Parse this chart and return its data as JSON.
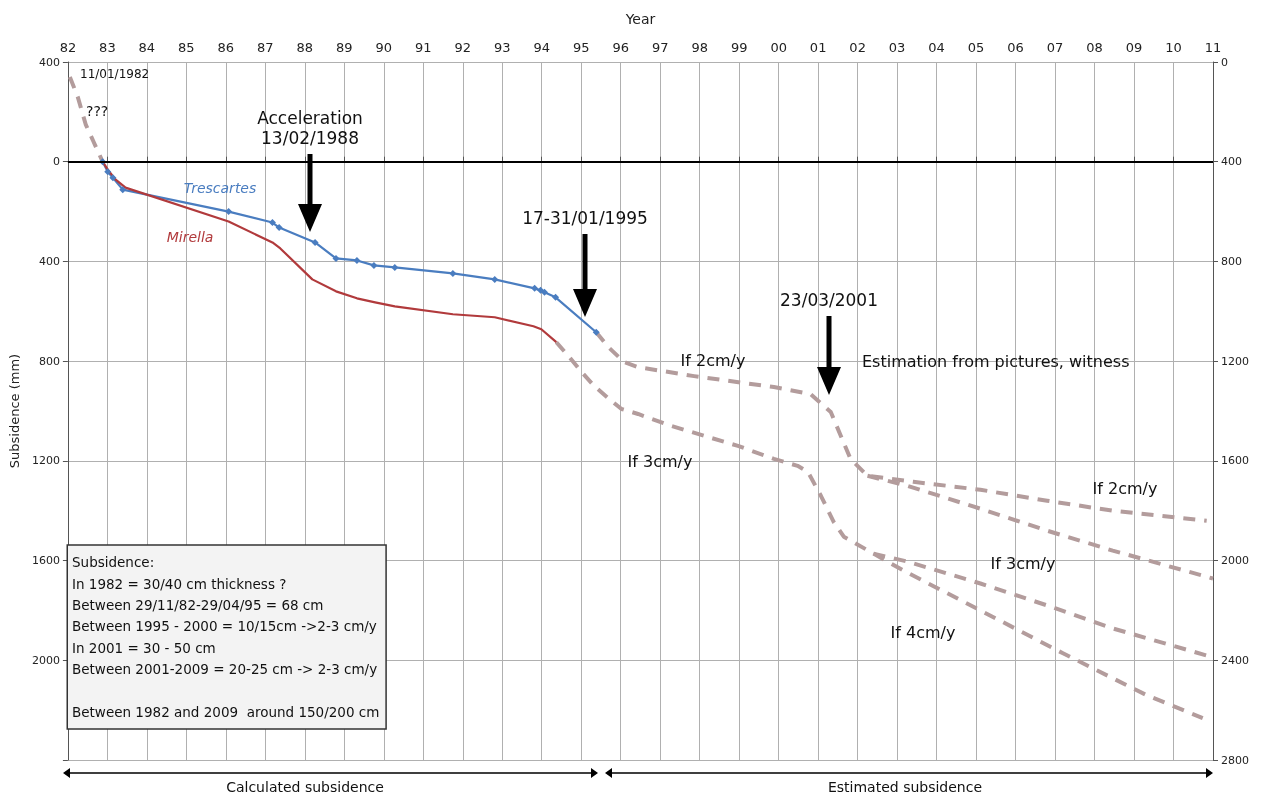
{
  "chart_data": {
    "type": "line",
    "xlabel": "Year",
    "ylabel": "Subsidence (mm)",
    "xlim": [
      1982,
      2011
    ],
    "xticks": [
      {
        "value": 1982,
        "label": "82"
      },
      {
        "value": 1983,
        "label": "83"
      },
      {
        "value": 1984,
        "label": "84"
      },
      {
        "value": 1985,
        "label": "85"
      },
      {
        "value": 1986,
        "label": "86"
      },
      {
        "value": 1987,
        "label": "87"
      },
      {
        "value": 1988,
        "label": "88"
      },
      {
        "value": 1989,
        "label": "89"
      },
      {
        "value": 1990,
        "label": "90"
      },
      {
        "value": 1991,
        "label": "91"
      },
      {
        "value": 1992,
        "label": "92"
      },
      {
        "value": 1993,
        "label": "93"
      },
      {
        "value": 1994,
        "label": "94"
      },
      {
        "value": 1995,
        "label": "95"
      },
      {
        "value": 1996,
        "label": "96"
      },
      {
        "value": 1997,
        "label": "97"
      },
      {
        "value": 1998,
        "label": "98"
      },
      {
        "value": 1999,
        "label": "99"
      },
      {
        "value": 2000,
        "label": "00"
      },
      {
        "value": 2001,
        "label": "01"
      },
      {
        "value": 2002,
        "label": "02"
      },
      {
        "value": 2003,
        "label": "03"
      },
      {
        "value": 2004,
        "label": "04"
      },
      {
        "value": 2005,
        "label": "05"
      },
      {
        "value": 2006,
        "label": "06"
      },
      {
        "value": 2007,
        "label": "07"
      },
      {
        "value": 2008,
        "label": "08"
      },
      {
        "value": 2009,
        "label": "09"
      },
      {
        "value": 2010,
        "label": "10"
      },
      {
        "value": 2011,
        "label": "11"
      }
    ],
    "ylim": [
      2400,
      -400
    ],
    "yticks": [
      {
        "value": -400,
        "label": "400"
      },
      0,
      400,
      800,
      1200,
      1600,
      2000,
      {
        "value": 2400,
        "label": null
      }
    ],
    "y2lim": [
      2800,
      0
    ],
    "y2ticks": [
      0,
      400,
      800,
      1200,
      1600,
      2000,
      2400,
      2800
    ],
    "grid": true,
    "series": [
      {
        "name": "Trescartes",
        "color": "#4a7dc0",
        "marker": "diamond",
        "line_style": "solid",
        "x": [
          1982.88,
          1983.01,
          1983.14,
          1983.39,
          1986.07,
          1987.18,
          1987.35,
          1988.26,
          1988.79,
          1989.32,
          1989.75,
          1990.28,
          1991.75,
          1992.81,
          1993.82,
          1993.97,
          1994.07,
          1994.35,
          1995.38
        ],
        "values": [
          0,
          40,
          64,
          112,
          200,
          244,
          264,
          324,
          388,
          396,
          416,
          424,
          448,
          472,
          508,
          516,
          524,
          544,
          684
        ]
      },
      {
        "name": "Mirella",
        "color": "#b13a3c",
        "marker": "none",
        "line_style": "solid",
        "x": [
          1982.88,
          1983.01,
          1983.21,
          1983.46,
          1986.07,
          1987.18,
          1987.38,
          1988.19,
          1988.79,
          1989.32,
          1989.78,
          1990.28,
          1991.75,
          1992.81,
          1993.79,
          1993.99,
          1994.37
        ],
        "values": [
          0,
          32,
          72,
          104,
          240,
          324,
          348,
          472,
          520,
          548,
          564,
          580,
          612,
          624,
          660,
          672,
          724
        ]
      },
      {
        "color": "#b39c9c",
        "marker": "none",
        "line_style": "dashed",
        "x": [
          1982.05,
          1982.25,
          1982.45,
          1982.65,
          1982.88
        ],
        "values": [
          -340,
          -260,
          -150,
          -80,
          0
        ]
      },
      {
        "color": "#b39c9c",
        "marker": "none",
        "line_style": "dashed",
        "x": [
          1995.38,
          1995.69,
          1996.09,
          1996.44,
          1997.86,
          1999.88,
          2000.81,
          2001.32,
          2001.82,
          2002.25,
          2003.41,
          2005.11,
          2006.8,
          2008.46,
          2010.84
        ],
        "values": [
          684,
          744,
          804,
          824,
          860,
          904,
          932,
          1004,
          1192,
          1260,
          1284,
          1316,
          1360,
          1400,
          1440
        ]
      },
      {
        "color": "#b39c9c",
        "marker": "none",
        "line_style": "dashed",
        "x": [
          2002.25,
          2003.26,
          2005.11,
          2006.8,
          2008.46,
          2011.0
        ],
        "values": [
          1260,
          1300,
          1392,
          1480,
          1560,
          1672
        ]
      },
      {
        "color": "#b39c9c",
        "marker": "none",
        "line_style": "dashed",
        "x": [
          1994.37,
          1994.7,
          1995.01,
          1995.33,
          1995.71,
          1996.02,
          1996.44,
          1997.28,
          1998.97,
          1999.88,
          2000.48,
          2000.74,
          2001.07,
          2001.39,
          2001.65,
          2002.4,
          2003.26,
          2005.11,
          2006.8,
          2008.46,
          2010.91
        ],
        "values": [
          724,
          784,
          844,
          900,
          952,
          992,
          1012,
          1060,
          1140,
          1192,
          1220,
          1244,
          1340,
          1444,
          1504,
          1572,
          1604,
          1692,
          1780,
          1872,
          1984
        ]
      },
      {
        "color": "#b39c9c",
        "marker": "none",
        "line_style": "dashed",
        "x": [
          2002.4,
          2003.16,
          2005.11,
          2007.2,
          2009.32,
          2010.74
        ],
        "values": [
          1572,
          1640,
          1800,
          1972,
          2140,
          2232
        ]
      }
    ],
    "ref_lines": [
      {
        "axis": "y",
        "value": 0,
        "color": "#000000"
      }
    ],
    "annotations": [
      "Acceleration\n13/02/1988",
      "17-31/01/1995",
      "23/03/2001",
      "11/01/1982",
      "???",
      "Estimation from pictures, witness",
      "If 2cm/y",
      "If 3cm/y",
      "If 2cm/y",
      "If 3cm/y",
      "If 4cm/y",
      "Subsidence:\nIn 1982 = 30/40 cm thickness ?\nBetween 29/11/82-29/04/95 = 68 cm\nBetween 1995 - 2000 = 10/15cm ->2-3 cm/y\nIn 2001 = 30 - 50 cm\nBetween 2001-2009 = 20-25 cm -> 2-3 cm/y\n\nBetween 1982 and 2009  around 150/200 cm",
      "Calculated subsidence",
      "Estimated subsidence"
    ]
  }
}
